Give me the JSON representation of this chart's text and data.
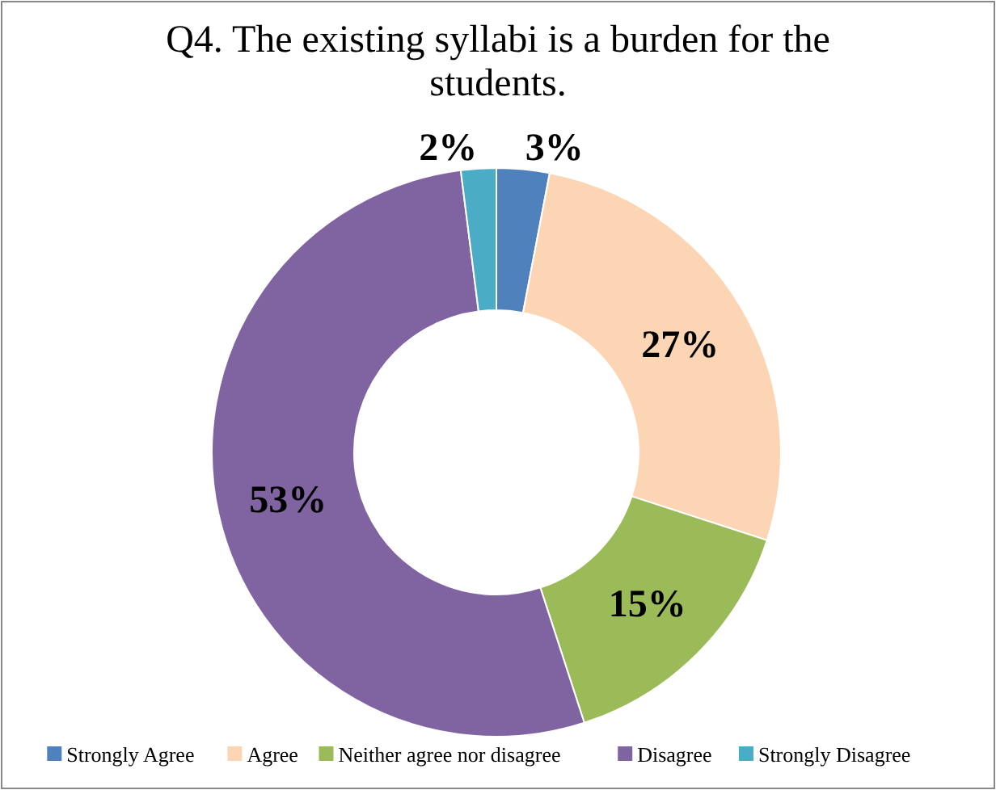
{
  "chart_data": {
    "type": "donut",
    "title": "Q4. The existing syllabi is a burden for the students.",
    "categories": [
      "Strongly Agree",
      "Agree",
      "Neither agree nor disagree",
      "Disagree",
      "Strongly Disagree"
    ],
    "values": [
      3,
      27,
      15,
      53,
      2
    ],
    "colors": [
      "#4f81bd",
      "#fcd5b5",
      "#9bbb59",
      "#8064a2",
      "#4bacc6"
    ],
    "value_labels": [
      "3%",
      "27%",
      "15%",
      "53%",
      "2%"
    ],
    "legend": "bottom"
  }
}
